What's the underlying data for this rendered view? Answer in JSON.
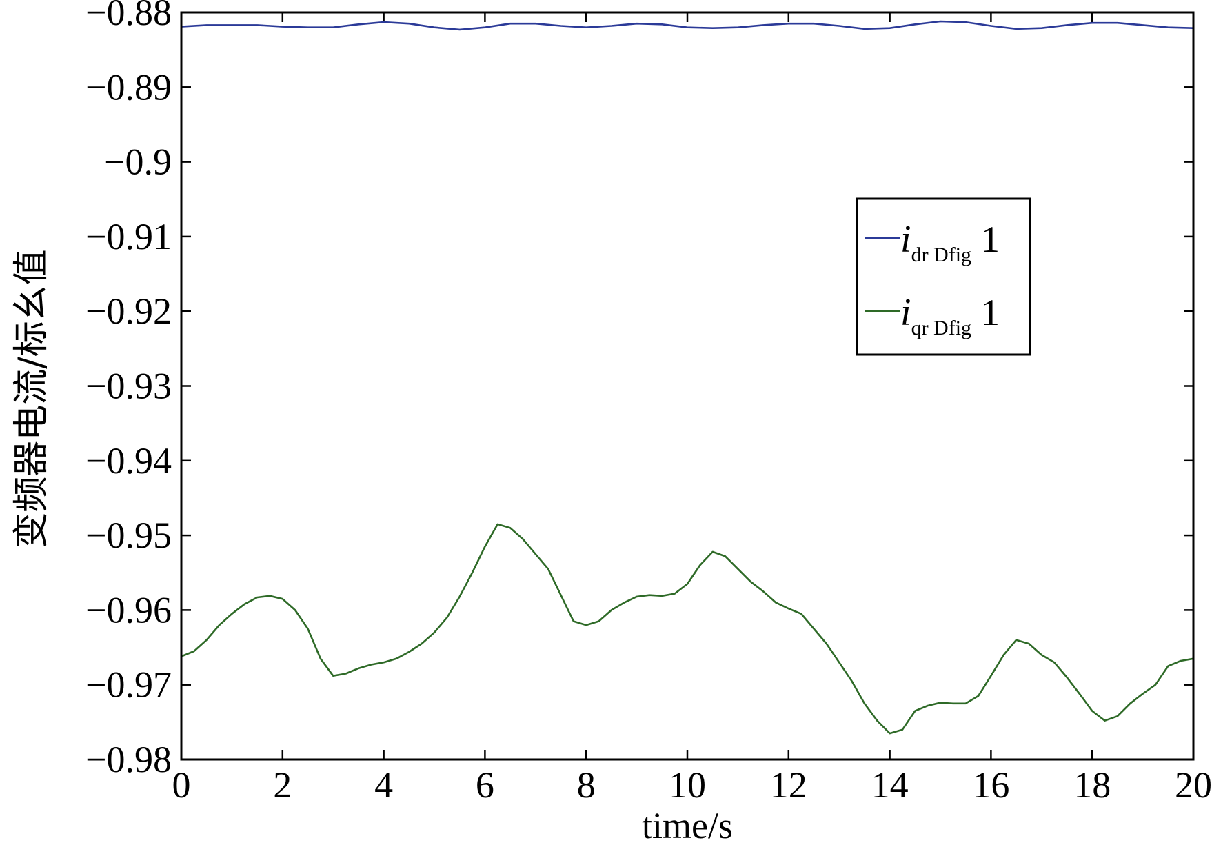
{
  "chart_data": {
    "type": "line",
    "title": "",
    "xlabel": "time/s",
    "ylabel": "变频器电流/标幺值",
    "xlim": [
      0,
      20
    ],
    "ylim": [
      -0.98,
      -0.88
    ],
    "x_ticks": [
      "0",
      "2",
      "4",
      "6",
      "8",
      "10",
      "12",
      "14",
      "16",
      "18",
      "20"
    ],
    "y_ticks": [
      "−0.88",
      "−0.89",
      "−0.9",
      "−0.91",
      "−0.92",
      "−0.93",
      "−0.94",
      "−0.95",
      "−0.96",
      "−0.97",
      "−0.98"
    ],
    "grid": false,
    "legend_position": "right-middle",
    "series": [
      {
        "name": "i_dr Dfig 1",
        "legend_symbol": "i",
        "legend_sub": "dr Dfig",
        "legend_suffix": "1",
        "color": "#2b3a98",
        "x": [
          0,
          0.5,
          1,
          1.5,
          2,
          2.5,
          3,
          3.5,
          4,
          4.5,
          5,
          5.5,
          6,
          6.5,
          7,
          7.5,
          8,
          8.5,
          9,
          9.5,
          10,
          10.5,
          11,
          11.5,
          12,
          12.5,
          13,
          13.5,
          14,
          14.5,
          15,
          15.5,
          16,
          16.5,
          17,
          17.5,
          18,
          18.5,
          19,
          19.5,
          20
        ],
        "y": [
          -0.8819,
          -0.8817,
          -0.8817,
          -0.8817,
          -0.8819,
          -0.882,
          -0.882,
          -0.8816,
          -0.8813,
          -0.8815,
          -0.882,
          -0.8823,
          -0.882,
          -0.8815,
          -0.8815,
          -0.8818,
          -0.882,
          -0.8818,
          -0.8815,
          -0.8816,
          -0.882,
          -0.8821,
          -0.882,
          -0.8817,
          -0.8815,
          -0.8815,
          -0.8818,
          -0.8822,
          -0.8821,
          -0.8816,
          -0.8812,
          -0.8813,
          -0.8818,
          -0.8822,
          -0.8821,
          -0.8817,
          -0.8814,
          -0.8814,
          -0.8817,
          -0.882,
          -0.8821
        ]
      },
      {
        "name": "i_qr Dfig 1",
        "legend_symbol": "i",
        "legend_sub": "qr Dfig",
        "legend_suffix": "1",
        "color": "#2e6a27",
        "x": [
          0,
          0.25,
          0.5,
          0.75,
          1,
          1.25,
          1.5,
          1.75,
          2,
          2.25,
          2.5,
          2.75,
          3,
          3.25,
          3.5,
          3.75,
          4,
          4.25,
          4.5,
          4.75,
          5,
          5.25,
          5.5,
          5.75,
          6,
          6.25,
          6.5,
          6.75,
          7,
          7.25,
          7.5,
          7.75,
          8,
          8.25,
          8.5,
          8.75,
          9,
          9.25,
          9.5,
          9.75,
          10,
          10.25,
          10.5,
          10.75,
          11,
          11.25,
          11.5,
          11.75,
          12,
          12.25,
          12.5,
          12.75,
          13,
          13.25,
          13.5,
          13.75,
          14,
          14.25,
          14.5,
          14.75,
          15,
          15.25,
          15.5,
          15.75,
          16,
          16.25,
          16.5,
          16.75,
          17,
          17.25,
          17.5,
          17.75,
          18,
          18.25,
          18.5,
          18.75,
          19,
          19.25,
          19.5,
          19.75,
          20
        ],
        "y": [
          -0.9662,
          -0.9655,
          -0.964,
          -0.962,
          -0.9605,
          -0.9592,
          -0.9583,
          -0.9581,
          -0.9585,
          -0.96,
          -0.9625,
          -0.9665,
          -0.9688,
          -0.9685,
          -0.9678,
          -0.9673,
          -0.967,
          -0.9665,
          -0.9656,
          -0.9645,
          -0.963,
          -0.961,
          -0.9582,
          -0.955,
          -0.9515,
          -0.9485,
          -0.949,
          -0.9505,
          -0.9525,
          -0.9545,
          -0.958,
          -0.9615,
          -0.962,
          -0.9615,
          -0.96,
          -0.959,
          -0.9582,
          -0.958,
          -0.9581,
          -0.9578,
          -0.9565,
          -0.954,
          -0.9522,
          -0.9528,
          -0.9545,
          -0.9562,
          -0.9575,
          -0.959,
          -0.9598,
          -0.9605,
          -0.9625,
          -0.9645,
          -0.967,
          -0.9695,
          -0.9725,
          -0.9748,
          -0.9765,
          -0.976,
          -0.9735,
          -0.9728,
          -0.9724,
          -0.9725,
          -0.9725,
          -0.9715,
          -0.9688,
          -0.966,
          -0.964,
          -0.9645,
          -0.966,
          -0.967,
          -0.969,
          -0.9712,
          -0.9735,
          -0.9748,
          -0.9742,
          -0.9725,
          -0.9712,
          -0.97,
          -0.9675,
          -0.9668,
          -0.9665
        ]
      }
    ]
  }
}
